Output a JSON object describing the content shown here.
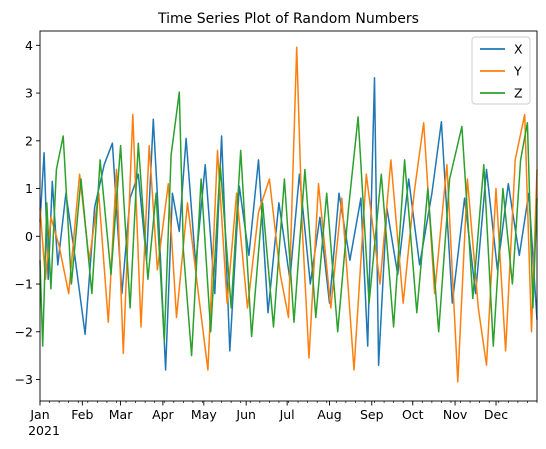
{
  "chart_data": {
    "type": "line",
    "title": "Time Series Plot of Random Numbers",
    "xlabel": "",
    "ylabel": "",
    "x_start": "2021-01-01",
    "x_end": "2021-12-31",
    "x_ticks": [
      {
        "date": "2021-01-01",
        "label": "Jan",
        "sublabel": "2021"
      },
      {
        "date": "2021-02-01",
        "label": "Feb"
      },
      {
        "date": "2021-03-01",
        "label": "Mar"
      },
      {
        "date": "2021-04-01",
        "label": "Apr"
      },
      {
        "date": "2021-05-01",
        "label": "May"
      },
      {
        "date": "2021-06-01",
        "label": "Jun"
      },
      {
        "date": "2021-07-01",
        "label": "Jul"
      },
      {
        "date": "2021-08-01",
        "label": "Aug"
      },
      {
        "date": "2021-09-01",
        "label": "Sep"
      },
      {
        "date": "2021-10-01",
        "label": "Oct"
      },
      {
        "date": "2021-11-01",
        "label": "Nov"
      },
      {
        "date": "2021-12-01",
        "label": "Dec"
      }
    ],
    "ylim": [
      -3.45,
      4.3
    ],
    "y_ticks": [
      -3,
      -2,
      -1,
      0,
      1,
      2,
      3,
      4
    ],
    "grid": false,
    "legend_position": "top-right",
    "series": [
      {
        "name": "X",
        "color": "#1f77b4",
        "points": [
          [
            "2021-01-01",
            0.3
          ],
          [
            "2021-01-04",
            1.75
          ],
          [
            "2021-01-07",
            -0.9
          ],
          [
            "2021-01-10",
            1.15
          ],
          [
            "2021-01-14",
            -0.6
          ],
          [
            "2021-01-20",
            0.9
          ],
          [
            "2021-01-26",
            -0.3
          ],
          [
            "2021-02-03",
            -2.05
          ],
          [
            "2021-02-10",
            0.6
          ],
          [
            "2021-02-17",
            1.5
          ],
          [
            "2021-02-23",
            1.95
          ],
          [
            "2021-03-02",
            -1.2
          ],
          [
            "2021-03-08",
            0.8
          ],
          [
            "2021-03-14",
            1.3
          ],
          [
            "2021-03-20",
            -0.5
          ],
          [
            "2021-03-25",
            2.45
          ],
          [
            "2021-03-29",
            0.3
          ],
          [
            "2021-04-03",
            -2.8
          ],
          [
            "2021-04-08",
            0.9
          ],
          [
            "2021-04-13",
            0.1
          ],
          [
            "2021-04-18",
            2.05
          ],
          [
            "2021-04-25",
            -0.6
          ],
          [
            "2021-05-02",
            1.5
          ],
          [
            "2021-05-09",
            -1.2
          ],
          [
            "2021-05-14",
            2.1
          ],
          [
            "2021-05-20",
            -2.4
          ],
          [
            "2021-05-27",
            1.05
          ],
          [
            "2021-06-03",
            -0.4
          ],
          [
            "2021-06-10",
            1.6
          ],
          [
            "2021-06-17",
            -1.6
          ],
          [
            "2021-06-25",
            0.7
          ],
          [
            "2021-07-03",
            -0.9
          ],
          [
            "2021-07-10",
            1.3
          ],
          [
            "2021-07-18",
            -1.0
          ],
          [
            "2021-07-25",
            0.4
          ],
          [
            "2021-08-01",
            -1.4
          ],
          [
            "2021-08-08",
            0.9
          ],
          [
            "2021-08-16",
            -0.5
          ],
          [
            "2021-08-24",
            0.8
          ],
          [
            "2021-08-29",
            -2.3
          ],
          [
            "2021-09-03",
            3.32
          ],
          [
            "2021-09-06",
            -2.7
          ],
          [
            "2021-09-12",
            0.6
          ],
          [
            "2021-09-20",
            -0.8
          ],
          [
            "2021-09-28",
            1.2
          ],
          [
            "2021-10-06",
            -0.6
          ],
          [
            "2021-10-15",
            0.9
          ],
          [
            "2021-10-22",
            2.4
          ],
          [
            "2021-10-30",
            -1.4
          ],
          [
            "2021-11-08",
            0.8
          ],
          [
            "2021-11-16",
            -1.2
          ],
          [
            "2021-11-24",
            1.4
          ],
          [
            "2021-12-02",
            -0.7
          ],
          [
            "2021-12-10",
            1.1
          ],
          [
            "2021-12-18",
            -0.4
          ],
          [
            "2021-12-25",
            0.9
          ],
          [
            "2021-12-31",
            -1.75
          ]
        ]
      },
      {
        "name": "Y",
        "color": "#ff7f0e",
        "points": [
          [
            "2021-01-01",
            0.6
          ],
          [
            "2021-01-05",
            -0.9
          ],
          [
            "2021-01-09",
            0.4
          ],
          [
            "2021-01-15",
            -0.2
          ],
          [
            "2021-01-22",
            -1.2
          ],
          [
            "2021-01-30",
            1.3
          ],
          [
            "2021-02-06",
            -0.5
          ],
          [
            "2021-02-13",
            0.9
          ],
          [
            "2021-02-20",
            -1.8
          ],
          [
            "2021-02-26",
            1.4
          ],
          [
            "2021-03-03",
            -2.45
          ],
          [
            "2021-03-10",
            2.55
          ],
          [
            "2021-03-16",
            -1.9
          ],
          [
            "2021-03-22",
            1.9
          ],
          [
            "2021-03-28",
            -0.7
          ],
          [
            "2021-04-05",
            1.1
          ],
          [
            "2021-04-11",
            -1.7
          ],
          [
            "2021-04-19",
            0.7
          ],
          [
            "2021-04-27",
            -1.2
          ],
          [
            "2021-05-04",
            -2.8
          ],
          [
            "2021-05-11",
            1.8
          ],
          [
            "2021-05-18",
            -1.4
          ],
          [
            "2021-05-25",
            0.9
          ],
          [
            "2021-06-02",
            -1.5
          ],
          [
            "2021-06-10",
            0.5
          ],
          [
            "2021-06-18",
            1.2
          ],
          [
            "2021-06-26",
            -0.8
          ],
          [
            "2021-07-02",
            -1.7
          ],
          [
            "2021-07-08",
            3.96
          ],
          [
            "2021-07-12",
            0.2
          ],
          [
            "2021-07-17",
            -2.55
          ],
          [
            "2021-07-24",
            1.1
          ],
          [
            "2021-08-02",
            -1.5
          ],
          [
            "2021-08-10",
            0.8
          ],
          [
            "2021-08-19",
            -2.8
          ],
          [
            "2021-08-28",
            1.3
          ],
          [
            "2021-09-07",
            -1.0
          ],
          [
            "2021-09-15",
            1.6
          ],
          [
            "2021-09-24",
            -1.4
          ],
          [
            "2021-10-02",
            0.9
          ],
          [
            "2021-10-09",
            2.38
          ],
          [
            "2021-10-17",
            -1.2
          ],
          [
            "2021-10-26",
            1.5
          ],
          [
            "2021-11-03",
            -3.05
          ],
          [
            "2021-11-10",
            1.2
          ],
          [
            "2021-11-18",
            -1.5
          ],
          [
            "2021-11-24",
            -2.7
          ],
          [
            "2021-12-01",
            1.0
          ],
          [
            "2021-12-08",
            -2.4
          ],
          [
            "2021-12-15",
            1.6
          ],
          [
            "2021-12-22",
            2.55
          ],
          [
            "2021-12-27",
            -2.0
          ],
          [
            "2021-12-31",
            1.4
          ]
        ]
      },
      {
        "name": "Z",
        "color": "#2ca02c",
        "points": [
          [
            "2021-01-01",
            -0.5
          ],
          [
            "2021-01-03",
            -2.3
          ],
          [
            "2021-01-06",
            0.7
          ],
          [
            "2021-01-09",
            -1.1
          ],
          [
            "2021-01-13",
            1.4
          ],
          [
            "2021-01-18",
            2.1
          ],
          [
            "2021-01-24",
            -1.0
          ],
          [
            "2021-01-31",
            1.2
          ],
          [
            "2021-02-08",
            -1.2
          ],
          [
            "2021-02-14",
            1.6
          ],
          [
            "2021-02-22",
            -0.8
          ],
          [
            "2021-03-01",
            1.9
          ],
          [
            "2021-03-08",
            -1.5
          ],
          [
            "2021-03-14",
            1.95
          ],
          [
            "2021-03-21",
            -0.9
          ],
          [
            "2021-03-27",
            0.9
          ],
          [
            "2021-04-02",
            -2.2
          ],
          [
            "2021-04-07",
            1.7
          ],
          [
            "2021-04-13",
            3.02
          ],
          [
            "2021-04-16",
            -0.3
          ],
          [
            "2021-04-22",
            -2.5
          ],
          [
            "2021-04-29",
            1.2
          ],
          [
            "2021-05-06",
            -2.0
          ],
          [
            "2021-05-13",
            1.5
          ],
          [
            "2021-05-21",
            -1.5
          ],
          [
            "2021-05-28",
            1.8
          ],
          [
            "2021-06-05",
            -2.1
          ],
          [
            "2021-06-13",
            0.7
          ],
          [
            "2021-06-21",
            -1.9
          ],
          [
            "2021-06-29",
            1.2
          ],
          [
            "2021-07-06",
            -1.8
          ],
          [
            "2021-07-14",
            1.4
          ],
          [
            "2021-07-22",
            -1.7
          ],
          [
            "2021-07-30",
            0.9
          ],
          [
            "2021-08-07",
            -2.0
          ],
          [
            "2021-08-15",
            0.6
          ],
          [
            "2021-08-22",
            2.5
          ],
          [
            "2021-08-30",
            -1.4
          ],
          [
            "2021-09-08",
            1.3
          ],
          [
            "2021-09-17",
            -1.9
          ],
          [
            "2021-09-25",
            1.6
          ],
          [
            "2021-10-04",
            -1.6
          ],
          [
            "2021-10-12",
            1.0
          ],
          [
            "2021-10-20",
            -2.0
          ],
          [
            "2021-10-28",
            1.2
          ],
          [
            "2021-11-06",
            2.3
          ],
          [
            "2021-11-14",
            -1.3
          ],
          [
            "2021-11-22",
            1.5
          ],
          [
            "2021-11-29",
            -2.3
          ],
          [
            "2021-12-06",
            1.0
          ],
          [
            "2021-12-13",
            -1.0
          ],
          [
            "2021-12-19",
            1.6
          ],
          [
            "2021-12-24",
            2.38
          ],
          [
            "2021-12-28",
            -1.5
          ],
          [
            "2021-12-31",
            0.8
          ]
        ]
      }
    ]
  }
}
